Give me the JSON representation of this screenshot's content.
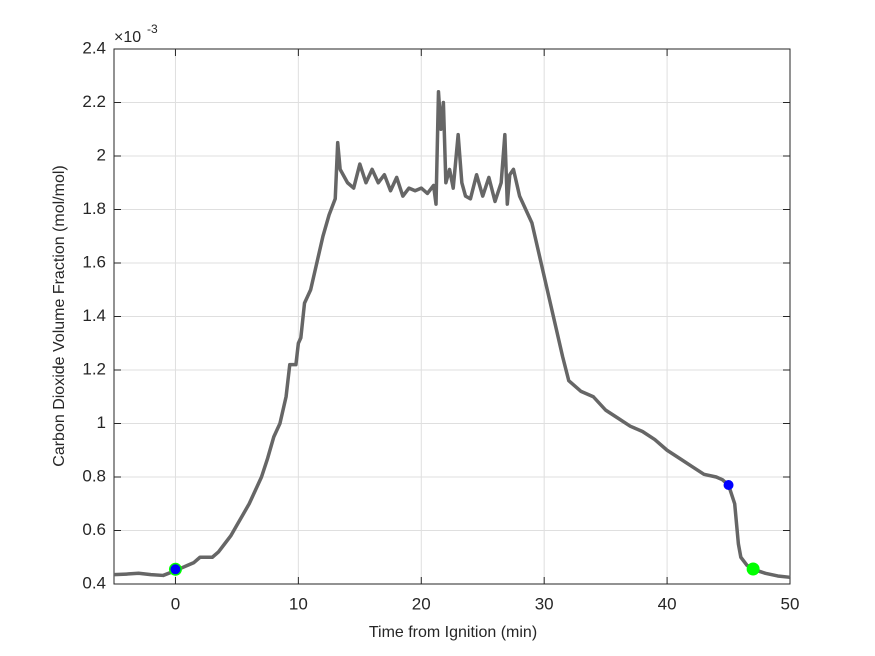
{
  "chart_data": {
    "type": "line",
    "xlabel": "Time from Ignition (min)",
    "ylabel": "Carbon Dioxide Volume Fraction (mol/mol)",
    "y_multiplier": "×10",
    "y_multiplier_exponent": "-3",
    "xlim": [
      -5,
      50
    ],
    "ylim": [
      0.4,
      2.4
    ],
    "xticks": [
      0,
      10,
      20,
      30,
      40,
      50
    ],
    "yticks": [
      0.4,
      0.6,
      0.8,
      1,
      1.2,
      1.4,
      1.6,
      1.8,
      2,
      2.2,
      2.4
    ],
    "grid": true,
    "series": [
      {
        "style": "line",
        "color": "#666666",
        "x": [
          -5,
          -4,
          -3,
          -2,
          -1,
          0,
          0.5,
          1,
          1.5,
          2,
          3,
          3.5,
          4,
          4.5,
          5,
          5.5,
          6,
          6.5,
          7,
          7.5,
          8,
          8.5,
          9,
          9.3,
          9.8,
          10,
          10.2,
          10.5,
          11,
          11.5,
          12,
          12.5,
          13,
          13.2,
          13.4,
          14,
          14.5,
          15,
          15.5,
          16,
          16.5,
          17,
          17.5,
          18,
          18.5,
          19,
          19.5,
          20,
          20.5,
          21,
          21.2,
          21.4,
          21.6,
          21.8,
          22,
          22.3,
          22.6,
          23,
          23.3,
          23.6,
          24,
          24.5,
          25,
          25.5,
          26,
          26.5,
          26.8,
          27,
          27.2,
          27.5,
          28,
          28.5,
          29,
          29.5,
          30,
          30.5,
          31,
          31.5,
          32,
          32.5,
          33,
          34,
          35,
          36,
          37,
          38,
          39,
          40,
          41,
          42,
          43,
          44,
          44.5,
          45,
          45.5,
          45.8,
          46,
          46.5,
          47,
          48,
          49,
          50
        ],
        "values": [
          0.435,
          0.437,
          0.44,
          0.435,
          0.432,
          0.45,
          0.46,
          0.47,
          0.48,
          0.5,
          0.5,
          0.52,
          0.55,
          0.58,
          0.62,
          0.66,
          0.7,
          0.75,
          0.8,
          0.87,
          0.95,
          1.0,
          1.1,
          1.22,
          1.22,
          1.3,
          1.32,
          1.45,
          1.5,
          1.6,
          1.7,
          1.78,
          1.84,
          2.05,
          1.95,
          1.9,
          1.88,
          1.97,
          1.9,
          1.95,
          1.9,
          1.93,
          1.87,
          1.92,
          1.85,
          1.88,
          1.87,
          1.88,
          1.86,
          1.89,
          1.82,
          2.24,
          2.1,
          2.2,
          1.9,
          1.95,
          1.88,
          2.08,
          1.9,
          1.85,
          1.84,
          1.93,
          1.85,
          1.92,
          1.83,
          1.9,
          2.08,
          1.82,
          1.93,
          1.95,
          1.85,
          1.8,
          1.75,
          1.65,
          1.55,
          1.45,
          1.35,
          1.25,
          1.16,
          1.14,
          1.12,
          1.1,
          1.05,
          1.02,
          0.99,
          0.97,
          0.94,
          0.9,
          0.87,
          0.84,
          0.81,
          0.8,
          0.79,
          0.77,
          0.7,
          0.55,
          0.5,
          0.47,
          0.455,
          0.44,
          0.43,
          0.425
        ]
      },
      {
        "style": "marker",
        "color": "#00ff00",
        "x": [
          0,
          47
        ],
        "values": [
          0.455,
          0.456
        ]
      },
      {
        "style": "marker",
        "color": "#0000ff",
        "x": [
          0,
          45
        ],
        "values": [
          0.455,
          0.77
        ]
      }
    ]
  }
}
